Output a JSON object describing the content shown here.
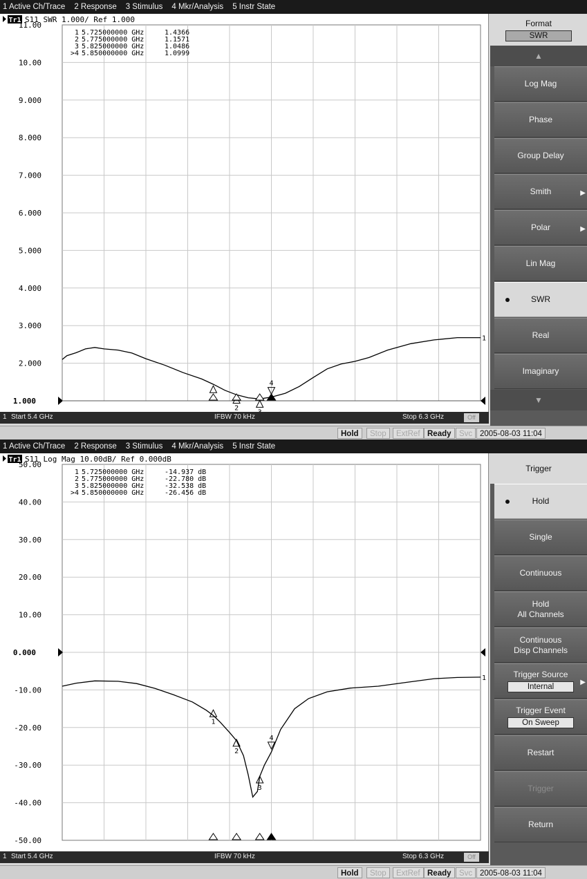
{
  "menu": [
    "1 Active Ch/Trace",
    "2 Response",
    "3 Stimulus",
    "4 Mkr/Analysis",
    "5 Instr State"
  ],
  "status": {
    "hold": "Hold",
    "stop": "Stop",
    "extref": "ExtRef",
    "ready": "Ready",
    "svc": "Svc",
    "datetime": "2005-08-03 11:04"
  },
  "panels": [
    {
      "trace_label": "Tr1",
      "header_text": "S11 SWR 1.000/ Ref 1.000",
      "channel_bar": {
        "channel": "1",
        "start": "Start 5.4 GHz",
        "ifbw": "IFBW 70 kHz",
        "stop": "Stop 6.3 GHz",
        "off": "Off"
      },
      "softkey_header": {
        "title": "Format",
        "value": "SWR"
      },
      "softkeys": [
        {
          "label": "Log Mag"
        },
        {
          "label": "Phase"
        },
        {
          "label": "Group Delay"
        },
        {
          "label": "Smith",
          "submenu": true
        },
        {
          "label": "Polar",
          "submenu": true
        },
        {
          "label": "Lin Mag"
        },
        {
          "label": "SWR",
          "selected": true
        },
        {
          "label": "Real"
        },
        {
          "label": "Imaginary"
        }
      ]
    },
    {
      "trace_label": "Tr1",
      "header_text": "S11 Log Mag 10.00dB/ Ref 0.000dB",
      "channel_bar": {
        "channel": "1",
        "start": "Start 5.4 GHz",
        "ifbw": "IFBW 70 kHz",
        "stop": "Stop 6.3 GHz",
        "off": "Off"
      },
      "softkey_header": {
        "title": "Trigger"
      },
      "softkeys": [
        {
          "label": "Hold",
          "selected": true
        },
        {
          "label": "Single"
        },
        {
          "label": "Continuous"
        },
        {
          "label": "Hold",
          "label2": "All Channels"
        },
        {
          "label": "Continuous",
          "label2": "Disp Channels"
        },
        {
          "label": "Trigger Source",
          "value": "Internal",
          "submenu": true
        },
        {
          "label": "Trigger Event",
          "value": "On Sweep"
        },
        {
          "label": "Restart"
        },
        {
          "label": "Trigger",
          "disabled": true
        },
        {
          "label": "Return"
        }
      ]
    }
  ],
  "chart_data": [
    {
      "type": "line",
      "ylim": [
        1,
        11
      ],
      "yticks": [
        11,
        10,
        9,
        8,
        7,
        6,
        5,
        4,
        3,
        2,
        1
      ],
      "ytick_labels": [
        "11.00",
        "10.00",
        "9.000",
        "8.000",
        "7.000",
        "6.000",
        "5.000",
        "4.000",
        "3.000",
        "2.000",
        "1.000"
      ],
      "xlim": [
        5.4,
        6.3
      ],
      "ref_value": 1.0,
      "series": [
        {
          "x": [
            5.4,
            5.41,
            5.43,
            5.45,
            5.47,
            5.49,
            5.52,
            5.55,
            5.58,
            5.62,
            5.66,
            5.7,
            5.725,
            5.75,
            5.775,
            5.8,
            5.825,
            5.85,
            5.88,
            5.91,
            5.94,
            5.97,
            6.0,
            6.03,
            6.06,
            6.1,
            6.15,
            6.2,
            6.25,
            6.3
          ],
          "y": [
            2.1,
            2.2,
            2.28,
            2.38,
            2.42,
            2.38,
            2.35,
            2.27,
            2.12,
            1.95,
            1.75,
            1.58,
            1.44,
            1.28,
            1.16,
            1.08,
            1.05,
            1.1,
            1.2,
            1.38,
            1.62,
            1.85,
            1.98,
            2.05,
            2.15,
            2.35,
            2.52,
            2.62,
            2.68,
            2.68
          ]
        }
      ],
      "markers": [
        {
          "id": "1",
          "freq": "5.725000000 GHz",
          "value": "1.4366",
          "x": 5.725,
          "y": 1.4366
        },
        {
          "id": "2",
          "freq": "5.775000000 GHz",
          "value": "1.1571",
          "x": 5.775,
          "y": 1.1571
        },
        {
          "id": "3",
          "freq": "5.825000000 GHz",
          "value": "1.0486",
          "x": 5.825,
          "y": 1.0486
        },
        {
          "id": ">4",
          "freq": "5.850000000 GHz",
          "value": "1.0999",
          "x": 5.85,
          "y": 1.0999,
          "active": true
        }
      ]
    },
    {
      "type": "line",
      "ylim": [
        -50,
        50
      ],
      "yticks": [
        50,
        40,
        30,
        20,
        10,
        0,
        -10,
        -20,
        -30,
        -40,
        -50
      ],
      "ytick_labels": [
        "50.00",
        "40.00",
        "30.00",
        "20.00",
        "10.00",
        "0.000",
        "-10.00",
        "-20.00",
        "-30.00",
        "-40.00",
        "-50.00"
      ],
      "xlim": [
        5.4,
        6.3
      ],
      "ref_value": 0.0,
      "series": [
        {
          "x": [
            5.4,
            5.43,
            5.47,
            5.52,
            5.56,
            5.6,
            5.64,
            5.68,
            5.71,
            5.725,
            5.74,
            5.76,
            5.775,
            5.79,
            5.8,
            5.81,
            5.82,
            5.825,
            5.835,
            5.85,
            5.87,
            5.9,
            5.93,
            5.97,
            6.02,
            6.08,
            6.14,
            6.2,
            6.25,
            6.3
          ],
          "y": [
            -9,
            -8.2,
            -7.6,
            -7.7,
            -8.3,
            -9.6,
            -11.3,
            -13.2,
            -15.4,
            -16.8,
            -18.6,
            -21.3,
            -23.5,
            -27.5,
            -32.5,
            -38.5,
            -37,
            -33,
            -30,
            -26.5,
            -20.5,
            -15,
            -12.3,
            -10.5,
            -9.5,
            -9,
            -8,
            -7,
            -6.7,
            -6.6
          ]
        }
      ],
      "markers": [
        {
          "id": "1",
          "freq": "5.725000000 GHz",
          "value": "-14.937 dB",
          "x": 5.725,
          "y": -14.937
        },
        {
          "id": "2",
          "freq": "5.775000000 GHz",
          "value": "-22.780 dB",
          "x": 5.775,
          "y": -22.78
        },
        {
          "id": "3",
          "freq": "5.825000000 GHz",
          "value": "-32.538 dB",
          "x": 5.825,
          "y": -32.538
        },
        {
          "id": ">4",
          "freq": "5.850000000 GHz",
          "value": "-26.456 dB",
          "x": 5.85,
          "y": -26.456,
          "active": true
        }
      ]
    }
  ]
}
